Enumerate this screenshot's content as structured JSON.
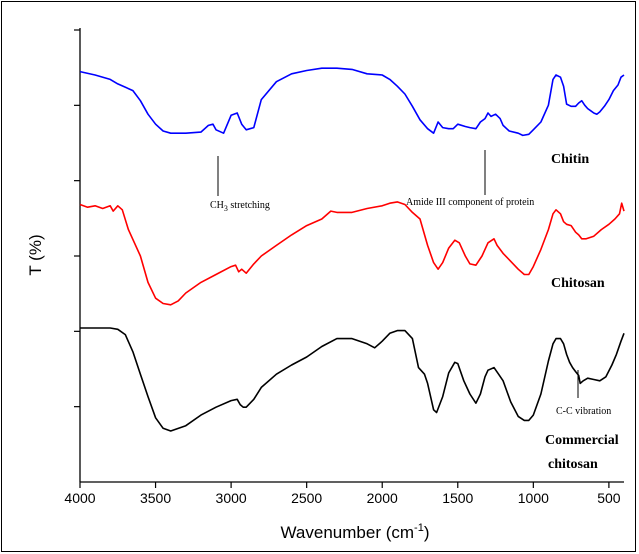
{
  "chart_data": {
    "type": "line",
    "xlabel": "Wavenumber (cm",
    "xlabel_sup": "-1",
    "xlabel_close": ")",
    "ylabel": "T (%)",
    "xlim": [
      4000,
      400
    ],
    "x_ticks": [
      4000,
      3500,
      3000,
      2500,
      2000,
      1500,
      1000,
      500
    ],
    "x_tick_labels": [
      "4000",
      "3500",
      "3000",
      "2500",
      "2000",
      "1500",
      "1000",
      "500"
    ],
    "y_ticks_count": 6,
    "grid": false,
    "series": [
      {
        "name": "Chitin",
        "color": "#0000ff",
        "points": [
          [
            4000,
            95
          ],
          [
            3900,
            92
          ],
          [
            3800,
            88
          ],
          [
            3750,
            84
          ],
          [
            3650,
            78
          ],
          [
            3600,
            69
          ],
          [
            3550,
            57
          ],
          [
            3500,
            48
          ],
          [
            3450,
            42
          ],
          [
            3400,
            40
          ],
          [
            3300,
            40
          ],
          [
            3200,
            41
          ],
          [
            3150,
            47
          ],
          [
            3120,
            48
          ],
          [
            3100,
            43
          ],
          [
            3050,
            40
          ],
          [
            3000,
            56
          ],
          [
            2960,
            58
          ],
          [
            2930,
            48
          ],
          [
            2900,
            43
          ],
          [
            2850,
            45
          ],
          [
            2800,
            70
          ],
          [
            2700,
            86
          ],
          [
            2600,
            93
          ],
          [
            2500,
            96
          ],
          [
            2400,
            98
          ],
          [
            2300,
            98
          ],
          [
            2200,
            97
          ],
          [
            2100,
            93
          ],
          [
            2000,
            92
          ],
          [
            1950,
            88
          ],
          [
            1900,
            82
          ],
          [
            1850,
            75
          ],
          [
            1800,
            64
          ],
          [
            1750,
            52
          ],
          [
            1700,
            44
          ],
          [
            1660,
            40
          ],
          [
            1630,
            50
          ],
          [
            1600,
            45
          ],
          [
            1560,
            44
          ],
          [
            1530,
            44
          ],
          [
            1500,
            48
          ],
          [
            1450,
            46
          ],
          [
            1420,
            45
          ],
          [
            1380,
            44
          ],
          [
            1350,
            50
          ],
          [
            1320,
            53
          ],
          [
            1300,
            58
          ],
          [
            1280,
            55
          ],
          [
            1250,
            57
          ],
          [
            1220,
            53
          ],
          [
            1200,
            47
          ],
          [
            1160,
            42
          ],
          [
            1100,
            40
          ],
          [
            1070,
            38
          ],
          [
            1030,
            39
          ],
          [
            1000,
            43
          ],
          [
            950,
            50
          ],
          [
            900,
            65
          ],
          [
            870,
            88
          ],
          [
            850,
            92
          ],
          [
            820,
            90
          ],
          [
            800,
            82
          ],
          [
            780,
            66
          ],
          [
            750,
            64
          ],
          [
            720,
            64
          ],
          [
            700,
            67
          ],
          [
            680,
            69
          ],
          [
            660,
            65
          ],
          [
            640,
            62
          ],
          [
            620,
            60
          ],
          [
            600,
            58
          ],
          [
            580,
            57
          ],
          [
            560,
            59
          ],
          [
            530,
            64
          ],
          [
            500,
            70
          ],
          [
            470,
            78
          ],
          [
            440,
            83
          ],
          [
            420,
            90
          ],
          [
            400,
            92
          ]
        ]
      },
      {
        "name": "Chitosan",
        "color": "#ff0000",
        "points": [
          [
            4000,
            89
          ],
          [
            3950,
            87
          ],
          [
            3900,
            88
          ],
          [
            3850,
            86
          ],
          [
            3800,
            88
          ],
          [
            3780,
            84
          ],
          [
            3750,
            88
          ],
          [
            3720,
            85
          ],
          [
            3680,
            70
          ],
          [
            3600,
            50
          ],
          [
            3550,
            30
          ],
          [
            3500,
            18
          ],
          [
            3450,
            14
          ],
          [
            3400,
            13
          ],
          [
            3350,
            16
          ],
          [
            3300,
            22
          ],
          [
            3200,
            30
          ],
          [
            3100,
            36
          ],
          [
            3000,
            42
          ],
          [
            2970,
            43
          ],
          [
            2950,
            38
          ],
          [
            2930,
            40
          ],
          [
            2900,
            37
          ],
          [
            2850,
            44
          ],
          [
            2800,
            50
          ],
          [
            2700,
            58
          ],
          [
            2600,
            66
          ],
          [
            2500,
            73
          ],
          [
            2400,
            78
          ],
          [
            2340,
            84
          ],
          [
            2300,
            83
          ],
          [
            2200,
            83
          ],
          [
            2100,
            86
          ],
          [
            2000,
            88
          ],
          [
            1950,
            90
          ],
          [
            1900,
            91
          ],
          [
            1850,
            89
          ],
          [
            1800,
            83
          ],
          [
            1750,
            78
          ],
          [
            1700,
            58
          ],
          [
            1660,
            45
          ],
          [
            1630,
            40
          ],
          [
            1600,
            45
          ],
          [
            1560,
            56
          ],
          [
            1520,
            62
          ],
          [
            1490,
            60
          ],
          [
            1450,
            50
          ],
          [
            1420,
            44
          ],
          [
            1380,
            43
          ],
          [
            1340,
            50
          ],
          [
            1300,
            60
          ],
          [
            1260,
            63
          ],
          [
            1240,
            58
          ],
          [
            1200,
            52
          ],
          [
            1150,
            46
          ],
          [
            1100,
            40
          ],
          [
            1060,
            36
          ],
          [
            1030,
            36
          ],
          [
            1000,
            42
          ],
          [
            950,
            55
          ],
          [
            900,
            70
          ],
          [
            870,
            82
          ],
          [
            850,
            85
          ],
          [
            820,
            82
          ],
          [
            800,
            76
          ],
          [
            780,
            74
          ],
          [
            750,
            73
          ],
          [
            720,
            68
          ],
          [
            700,
            66
          ],
          [
            680,
            63
          ],
          [
            650,
            63
          ],
          [
            600,
            65
          ],
          [
            550,
            70
          ],
          [
            500,
            74
          ],
          [
            460,
            78
          ],
          [
            430,
            82
          ],
          [
            415,
            90
          ],
          [
            400,
            84
          ]
        ]
      },
      {
        "name": "Commercial chitosan",
        "color": "#000000",
        "points": [
          [
            4000,
            100
          ],
          [
            3900,
            100
          ],
          [
            3800,
            100
          ],
          [
            3750,
            99
          ],
          [
            3700,
            95
          ],
          [
            3650,
            82
          ],
          [
            3600,
            65
          ],
          [
            3550,
            48
          ],
          [
            3500,
            32
          ],
          [
            3450,
            24
          ],
          [
            3400,
            22
          ],
          [
            3300,
            26
          ],
          [
            3200,
            34
          ],
          [
            3100,
            40
          ],
          [
            3000,
            45
          ],
          [
            2960,
            46
          ],
          [
            2940,
            42
          ],
          [
            2920,
            40
          ],
          [
            2900,
            40
          ],
          [
            2850,
            46
          ],
          [
            2800,
            55
          ],
          [
            2700,
            65
          ],
          [
            2600,
            72
          ],
          [
            2500,
            78
          ],
          [
            2400,
            86
          ],
          [
            2300,
            92
          ],
          [
            2200,
            92
          ],
          [
            2100,
            88
          ],
          [
            2050,
            85
          ],
          [
            2000,
            90
          ],
          [
            1950,
            96
          ],
          [
            1900,
            98
          ],
          [
            1850,
            98
          ],
          [
            1800,
            92
          ],
          [
            1760,
            70
          ],
          [
            1720,
            65
          ],
          [
            1700,
            58
          ],
          [
            1660,
            38
          ],
          [
            1640,
            36
          ],
          [
            1600,
            48
          ],
          [
            1560,
            66
          ],
          [
            1520,
            74
          ],
          [
            1500,
            73
          ],
          [
            1460,
            60
          ],
          [
            1420,
            50
          ],
          [
            1380,
            43
          ],
          [
            1350,
            50
          ],
          [
            1320,
            63
          ],
          [
            1300,
            68
          ],
          [
            1260,
            70
          ],
          [
            1230,
            65
          ],
          [
            1200,
            60
          ],
          [
            1150,
            44
          ],
          [
            1100,
            33
          ],
          [
            1060,
            30
          ],
          [
            1030,
            30
          ],
          [
            1000,
            34
          ],
          [
            950,
            50
          ],
          [
            900,
            75
          ],
          [
            870,
            88
          ],
          [
            850,
            92
          ],
          [
            820,
            92
          ],
          [
            800,
            88
          ],
          [
            780,
            80
          ],
          [
            760,
            74
          ],
          [
            740,
            70
          ],
          [
            720,
            67
          ],
          [
            700,
            64
          ],
          [
            690,
            58
          ],
          [
            670,
            60
          ],
          [
            640,
            62
          ],
          [
            600,
            61
          ],
          [
            560,
            60
          ],
          [
            520,
            63
          ],
          [
            480,
            72
          ],
          [
            450,
            80
          ],
          [
            420,
            90
          ],
          [
            400,
            96
          ]
        ]
      }
    ],
    "series_labels": [
      "Chitin",
      "Chitosan",
      "Commercial",
      "chitosan"
    ],
    "annotations": [
      "CH",
      "3",
      " stretching",
      "Amide III component of protein",
      "C-C vibration"
    ]
  }
}
